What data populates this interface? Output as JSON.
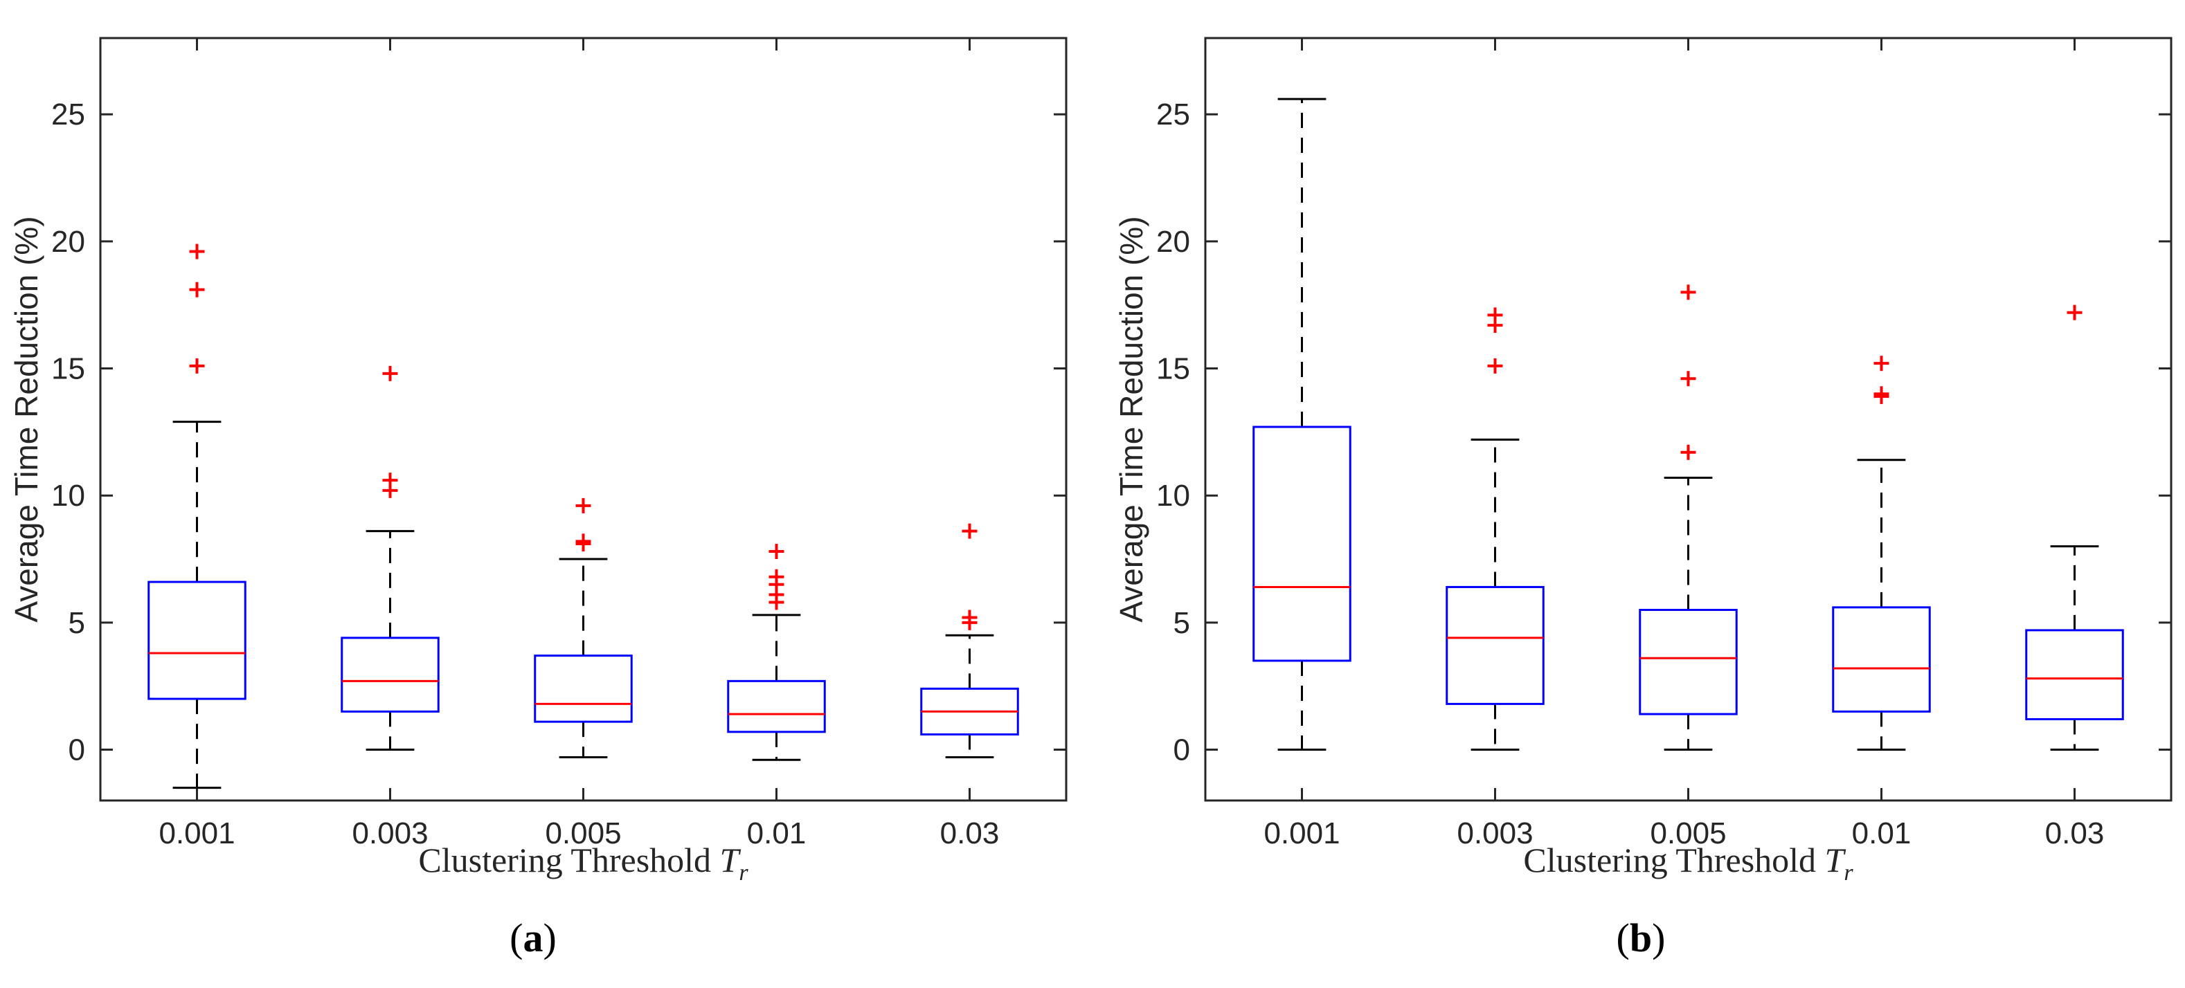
{
  "chart_data": [
    {
      "type": "box",
      "panel_label": "a",
      "caption": {
        "open": "(",
        "letter": "a",
        "close": ")"
      },
      "xlabel": {
        "text": "Clustering Threshold ",
        "symbol": "T",
        "subscript": "r"
      },
      "ylabel": "Average Time Reduction (%)",
      "ylim": [
        -2,
        28
      ],
      "yticks": [
        0,
        5,
        10,
        15,
        20,
        25
      ],
      "categories": [
        "0.001",
        "0.003",
        "0.005",
        "0.01",
        "0.03"
      ],
      "boxes": [
        {
          "category": "0.001",
          "lower_whisker": -1.5,
          "q1": 2.0,
          "median": 3.8,
          "q3": 6.6,
          "upper_whisker": 12.9,
          "outliers": [
            15.1,
            18.1,
            19.6
          ]
        },
        {
          "category": "0.003",
          "lower_whisker": 0.0,
          "q1": 1.5,
          "median": 2.7,
          "q3": 4.4,
          "upper_whisker": 8.6,
          "outliers": [
            10.2,
            10.6,
            14.8
          ]
        },
        {
          "category": "0.005",
          "lower_whisker": -0.3,
          "q1": 1.1,
          "median": 1.8,
          "q3": 3.7,
          "upper_whisker": 7.5,
          "outliers": [
            8.1,
            8.2,
            9.6
          ]
        },
        {
          "category": "0.01",
          "lower_whisker": -0.4,
          "q1": 0.7,
          "median": 1.4,
          "q3": 2.7,
          "upper_whisker": 5.3,
          "outliers": [
            5.8,
            6.1,
            6.5,
            6.8,
            7.8
          ]
        },
        {
          "category": "0.03",
          "lower_whisker": -0.3,
          "q1": 0.6,
          "median": 1.5,
          "q3": 2.4,
          "upper_whisker": 4.5,
          "outliers": [
            5.0,
            5.2,
            8.6
          ]
        }
      ]
    },
    {
      "type": "box",
      "panel_label": "b",
      "caption": {
        "open": "(",
        "letter": "b",
        "close": ")"
      },
      "xlabel": {
        "text": "Clustering Threshold ",
        "symbol": "T",
        "subscript": "r"
      },
      "ylabel": "Average Time Reduction (%)",
      "ylim": [
        -2,
        28
      ],
      "yticks": [
        0,
        5,
        10,
        15,
        20,
        25
      ],
      "categories": [
        "0.001",
        "0.003",
        "0.005",
        "0.01",
        "0.03"
      ],
      "boxes": [
        {
          "category": "0.001",
          "lower_whisker": 0.0,
          "q1": 3.5,
          "median": 6.4,
          "q3": 12.7,
          "upper_whisker": 25.6,
          "outliers": []
        },
        {
          "category": "0.003",
          "lower_whisker": 0.0,
          "q1": 1.8,
          "median": 4.4,
          "q3": 6.4,
          "upper_whisker": 12.2,
          "outliers": [
            15.1,
            16.7,
            17.1
          ]
        },
        {
          "category": "0.005",
          "lower_whisker": 0.0,
          "q1": 1.4,
          "median": 3.6,
          "q3": 5.5,
          "upper_whisker": 10.7,
          "outliers": [
            11.7,
            14.6,
            18.0
          ]
        },
        {
          "category": "0.01",
          "lower_whisker": 0.0,
          "q1": 1.5,
          "median": 3.2,
          "q3": 5.6,
          "upper_whisker": 11.4,
          "outliers": [
            13.9,
            14.0,
            15.2
          ]
        },
        {
          "category": "0.03",
          "lower_whisker": 0.0,
          "q1": 1.2,
          "median": 2.8,
          "q3": 4.7,
          "upper_whisker": 8.0,
          "outliers": [
            17.2
          ]
        }
      ]
    }
  ],
  "colors": {
    "box": "#0000ff",
    "median": "#ff0000",
    "outlier": "#ff0000",
    "whisker": "#000000",
    "axis": "#262626"
  }
}
